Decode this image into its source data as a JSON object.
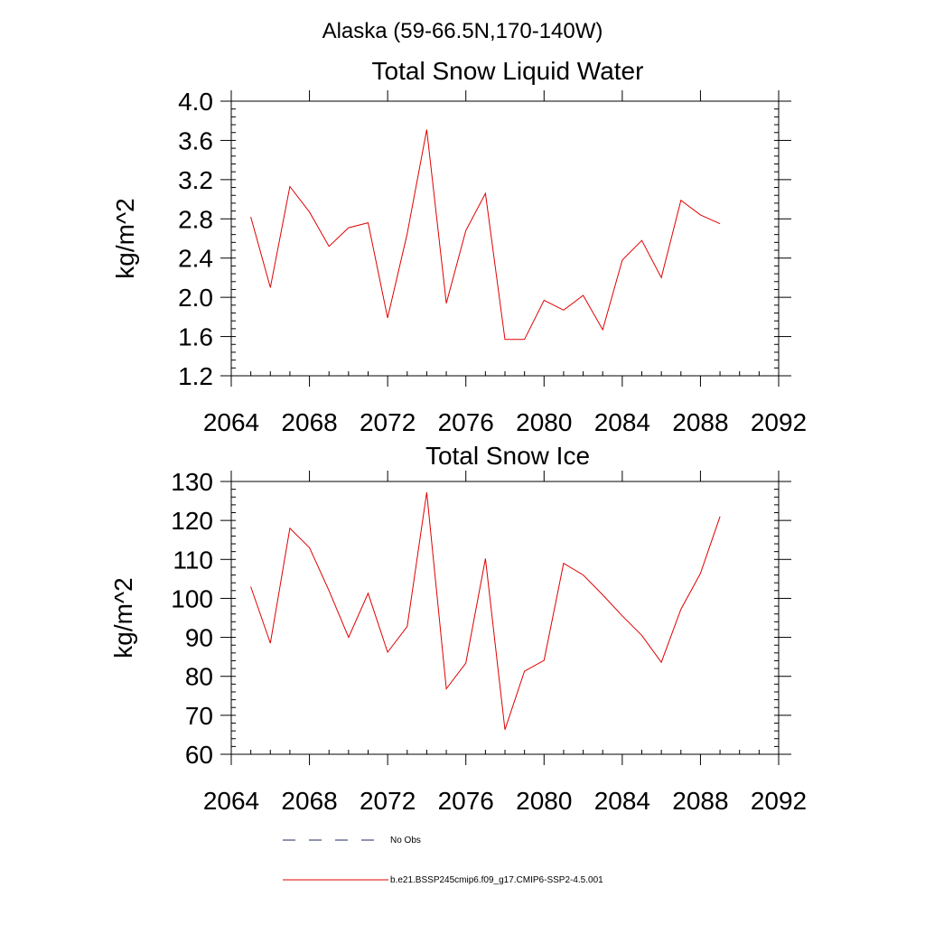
{
  "figure_title": "Alaska (59-66.5N,170-140W)",
  "legend": {
    "position": "bottom",
    "entries": [
      {
        "label": "No Obs",
        "style": "dashed",
        "color": "#1f2a5c"
      },
      {
        "label": "b.e21.BSSP245cmip6.f09_g17.CMIP6-SSP2-4.5.001",
        "style": "solid",
        "color": "#e00000"
      }
    ]
  },
  "chart_data": [
    {
      "type": "line",
      "title": "Total Snow Liquid Water",
      "xlabel": "",
      "ylabel": "kg/m^2",
      "xlim": [
        2064,
        2092
      ],
      "ylim": [
        1.2,
        4.0
      ],
      "x_ticks": [
        "2064",
        "2068",
        "2072",
        "2076",
        "2080",
        "2084",
        "2088",
        "2092"
      ],
      "y_ticks": [
        "1.2",
        "1.6",
        "2.0",
        "2.4",
        "2.8",
        "3.2",
        "3.6",
        "4.0"
      ],
      "grid": false,
      "series": [
        {
          "name": "b.e21.BSSP245cmip6.f09_g17.CMIP6-SSP2-4.5.001",
          "color": "#e00000",
          "x": [
            2065,
            2066,
            2067,
            2068,
            2069,
            2070,
            2071,
            2072,
            2073,
            2074,
            2075,
            2076,
            2077,
            2078,
            2079,
            2080,
            2081,
            2082,
            2083,
            2084,
            2085,
            2086,
            2087,
            2088,
            2089
          ],
          "y": [
            2.82,
            2.1,
            3.13,
            2.87,
            2.52,
            2.71,
            2.76,
            1.79,
            2.65,
            3.71,
            1.94,
            2.68,
            3.06,
            1.57,
            1.57,
            1.97,
            1.87,
            2.02,
            1.67,
            2.38,
            2.58,
            2.2,
            2.99,
            2.84,
            2.75
          ]
        }
      ]
    },
    {
      "type": "line",
      "title": "Total Snow Ice",
      "xlabel": "",
      "ylabel": "kg/m^2",
      "xlim": [
        2064,
        2092
      ],
      "ylim": [
        60,
        130
      ],
      "x_ticks": [
        "2064",
        "2068",
        "2072",
        "2076",
        "2080",
        "2084",
        "2088",
        "2092"
      ],
      "y_ticks": [
        "60",
        "70",
        "80",
        "90",
        "100",
        "110",
        "120",
        "130"
      ],
      "grid": false,
      "series": [
        {
          "name": "b.e21.BSSP245cmip6.f09_g17.CMIP6-SSP2-4.5.001",
          "color": "#e00000",
          "x": [
            2065,
            2066,
            2067,
            2068,
            2069,
            2070,
            2071,
            2072,
            2073,
            2074,
            2075,
            2076,
            2077,
            2078,
            2079,
            2080,
            2081,
            2082,
            2083,
            2084,
            2085,
            2086,
            2087,
            2088,
            2089
          ],
          "y": [
            103,
            88.5,
            118,
            113,
            102,
            90,
            101.3,
            86.2,
            92.8,
            127.2,
            76.8,
            83.4,
            110.2,
            66.3,
            81.3,
            84.1,
            109,
            106,
            100.9,
            95.5,
            90.5,
            83.6,
            97.2,
            106.4,
            121
          ]
        }
      ]
    }
  ]
}
